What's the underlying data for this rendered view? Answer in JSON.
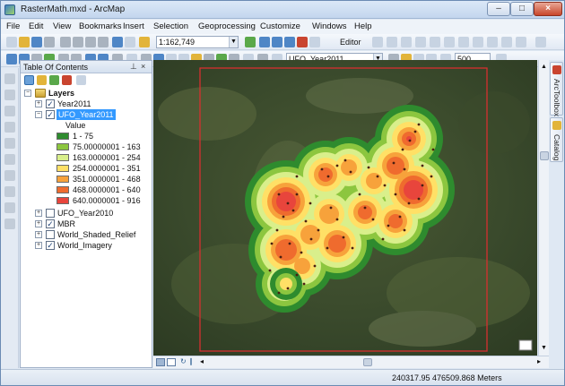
{
  "window": {
    "title": "RasterMath.mxd - ArcMap"
  },
  "menu": [
    "File",
    "Edit",
    "View",
    "Bookmarks",
    "Insert",
    "Selection",
    "Geoprocessing",
    "Customize",
    "Windows",
    "Help"
  ],
  "toolbar": {
    "scale": "1:162,749",
    "editor_label": "Editor",
    "layer_select": "UFO_Year2011",
    "cell_value": "500"
  },
  "toc": {
    "title": "Table Of Contents",
    "pin_glyph": "⊥",
    "close_glyph": "×",
    "layers_group": "Layers",
    "value_heading": "Value",
    "layers": [
      {
        "name": "Year2011",
        "checked": true
      },
      {
        "name": "UFO_Year2011",
        "checked": true
      },
      {
        "name": "UFO_Year2010",
        "checked": false
      },
      {
        "name": "MBR",
        "checked": true
      },
      {
        "name": "World_Shaded_Relief",
        "checked": false
      },
      {
        "name": "World_Imagery",
        "checked": true
      }
    ],
    "legend": [
      {
        "label": "1 - 75",
        "color": "#2e8b2e"
      },
      {
        "label": "75.00000001 - 163",
        "color": "#8cc63f"
      },
      {
        "label": "163.0000001 - 254",
        "color": "#d9ef8b"
      },
      {
        "label": "254.0000001 - 351",
        "color": "#ffe066"
      },
      {
        "label": "351.0000001 - 468",
        "color": "#f7a23b"
      },
      {
        "label": "468.0000001 - 640",
        "color": "#ef6b2e"
      },
      {
        "label": "640.0000001 - 916",
        "color": "#e8453c"
      }
    ]
  },
  "side_tabs": [
    "ArcToolbox",
    "Catalog"
  ],
  "status": {
    "coordinates": "240317.95  476509.868 Meters"
  },
  "colors": {
    "boundary": "#d62f2f",
    "point": "#4a1f12"
  }
}
